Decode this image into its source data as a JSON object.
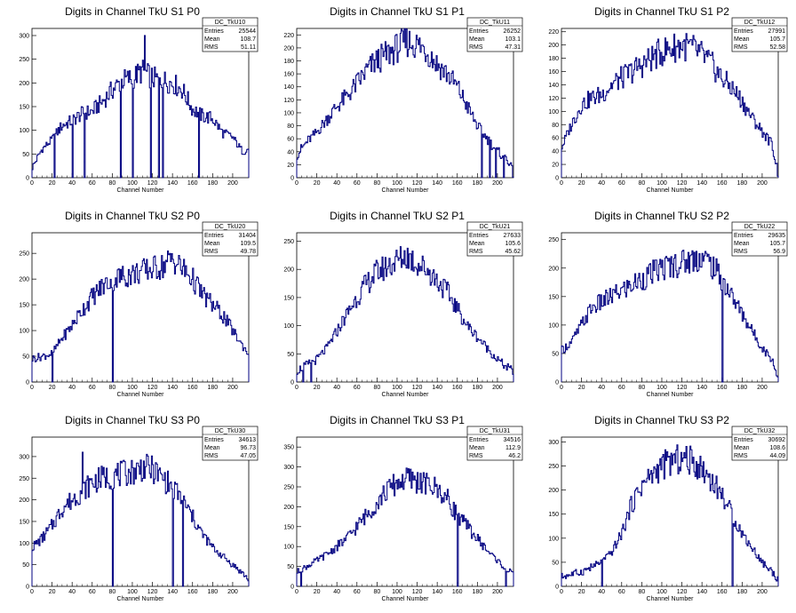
{
  "page": {
    "background": "#ffffff"
  },
  "style": {
    "line_color": "#000080",
    "axis_color": "#000000"
  },
  "chart_data": [
    {
      "type": "line",
      "id": "TkU10",
      "title": "Digits in Channel TkU S1 P0",
      "xlabel": "Channel Number",
      "ylabel": "",
      "xlim": [
        0,
        216
      ],
      "ylim": [
        0,
        315
      ],
      "xticks": [
        "0",
        "20",
        "40",
        "60",
        "80",
        "100",
        "120",
        "140",
        "160",
        "180",
        "200"
      ],
      "yticks": [
        "0",
        "50",
        "100",
        "150",
        "200",
        "250",
        "300"
      ],
      "stats": {
        "name": "DC_TkU10",
        "entries": "25544",
        "mean": "108.7",
        "rms": "51.11"
      },
      "x": [
        0,
        10,
        20,
        30,
        40,
        50,
        60,
        70,
        80,
        90,
        100,
        110,
        120,
        130,
        140,
        150,
        160,
        170,
        180,
        190,
        200,
        210,
        216
      ],
      "values": [
        20,
        60,
        80,
        110,
        120,
        135,
        140,
        160,
        185,
        205,
        210,
        225,
        210,
        205,
        200,
        185,
        145,
        130,
        125,
        95,
        85,
        55,
        60
      ],
      "spikes": [
        [
          22,
          0
        ],
        [
          40,
          0
        ],
        [
          52,
          0
        ],
        [
          88,
          0
        ],
        [
          100,
          0
        ],
        [
          112,
          300
        ],
        [
          118,
          0
        ],
        [
          126,
          0
        ],
        [
          130,
          0
        ],
        [
          166,
          0
        ]
      ]
    },
    {
      "type": "line",
      "id": "TkU11",
      "title": "Digits in Channel TkU S1 P1",
      "xlabel": "Channel Number",
      "ylabel": "",
      "xlim": [
        0,
        216
      ],
      "ylim": [
        0,
        230
      ],
      "xticks": [
        "0",
        "20",
        "40",
        "60",
        "80",
        "100",
        "120",
        "140",
        "160",
        "180",
        "200"
      ],
      "yticks": [
        "0",
        "20",
        "40",
        "60",
        "80",
        "100",
        "120",
        "140",
        "160",
        "180",
        "200",
        "220"
      ],
      "stats": {
        "name": "DC_TkU11",
        "entries": "26252",
        "mean": "103.1",
        "rms": "47.31"
      },
      "x": [
        0,
        10,
        20,
        30,
        40,
        50,
        60,
        70,
        80,
        90,
        100,
        110,
        120,
        130,
        140,
        150,
        160,
        170,
        180,
        190,
        200,
        210,
        216
      ],
      "values": [
        35,
        55,
        70,
        90,
        110,
        125,
        145,
        165,
        180,
        190,
        200,
        210,
        205,
        195,
        175,
        160,
        140,
        110,
        80,
        60,
        40,
        30,
        5
      ],
      "spikes": [
        [
          184,
          0
        ],
        [
          192,
          0
        ],
        [
          198,
          0
        ],
        [
          206,
          0
        ]
      ]
    },
    {
      "type": "line",
      "id": "TkU12",
      "title": "Digits in Channel TkU S1 P2",
      "xlabel": "Channel Number",
      "ylabel": "",
      "xlim": [
        0,
        216
      ],
      "ylim": [
        0,
        225
      ],
      "xticks": [
        "0",
        "20",
        "40",
        "60",
        "80",
        "100",
        "120",
        "140",
        "160",
        "180",
        "200"
      ],
      "yticks": [
        "0",
        "20",
        "40",
        "60",
        "80",
        "100",
        "120",
        "140",
        "160",
        "180",
        "200",
        "220"
      ],
      "stats": {
        "name": "DC_TkU12",
        "entries": "27991",
        "mean": "105.7",
        "rms": "52.58"
      },
      "x": [
        0,
        10,
        20,
        30,
        40,
        50,
        60,
        70,
        80,
        90,
        100,
        110,
        120,
        130,
        140,
        150,
        160,
        170,
        180,
        190,
        200,
        210,
        216
      ],
      "values": [
        45,
        80,
        110,
        120,
        125,
        140,
        150,
        160,
        170,
        180,
        190,
        195,
        200,
        195,
        185,
        170,
        150,
        135,
        115,
        90,
        70,
        50,
        5
      ],
      "spikes": []
    },
    {
      "type": "line",
      "id": "TkU20",
      "title": "Digits in Channel TkU S2 P0",
      "xlabel": "Channel Number",
      "ylabel": "",
      "xlim": [
        0,
        216
      ],
      "ylim": [
        0,
        290
      ],
      "xticks": [
        "0",
        "20",
        "40",
        "60",
        "80",
        "100",
        "120",
        "140",
        "160",
        "180",
        "200"
      ],
      "yticks": [
        "0",
        "50",
        "100",
        "150",
        "200",
        "250"
      ],
      "stats": {
        "name": "DC_TkU20",
        "entries": "31404",
        "mean": "109.5",
        "rms": "49.78"
      },
      "x": [
        0,
        10,
        20,
        30,
        40,
        50,
        60,
        70,
        80,
        90,
        100,
        110,
        120,
        130,
        140,
        150,
        160,
        170,
        180,
        190,
        200,
        210,
        216
      ],
      "values": [
        45,
        50,
        55,
        85,
        110,
        140,
        165,
        185,
        200,
        205,
        210,
        215,
        220,
        225,
        240,
        220,
        200,
        170,
        150,
        130,
        100,
        70,
        55
      ],
      "spikes": [
        [
          20,
          0
        ],
        [
          80,
          0
        ]
      ]
    },
    {
      "type": "line",
      "id": "TkU21",
      "title": "Digits in Channel TkU S2 P1",
      "xlabel": "Channel Number",
      "ylabel": "",
      "xlim": [
        0,
        216
      ],
      "ylim": [
        0,
        265
      ],
      "xticks": [
        "0",
        "20",
        "40",
        "60",
        "80",
        "100",
        "120",
        "140",
        "160",
        "180",
        "200"
      ],
      "yticks": [
        "0",
        "50",
        "100",
        "150",
        "200",
        "250"
      ],
      "stats": {
        "name": "DC_TkU21",
        "entries": "27633",
        "mean": "105.6",
        "rms": "45.62"
      },
      "x": [
        0,
        10,
        20,
        30,
        40,
        50,
        60,
        70,
        80,
        90,
        100,
        110,
        120,
        130,
        140,
        150,
        160,
        170,
        180,
        190,
        200,
        210,
        216
      ],
      "values": [
        20,
        30,
        40,
        60,
        90,
        120,
        150,
        175,
        195,
        205,
        215,
        225,
        210,
        200,
        180,
        160,
        130,
        100,
        80,
        60,
        40,
        25,
        20
      ],
      "spikes": [
        [
          6,
          0
        ],
        [
          14,
          0
        ]
      ]
    },
    {
      "type": "line",
      "id": "TkU22",
      "title": "Digits in Channel TkU S2 P2",
      "xlabel": "Channel Number",
      "ylabel": "",
      "xlim": [
        0,
        216
      ],
      "ylim": [
        0,
        262
      ],
      "xticks": [
        "0",
        "20",
        "40",
        "60",
        "80",
        "100",
        "120",
        "140",
        "160",
        "180",
        "200"
      ],
      "yticks": [
        "0",
        "50",
        "100",
        "150",
        "200",
        "250"
      ],
      "stats": {
        "name": "DC_TkU22",
        "entries": "29635",
        "mean": "105.7",
        "rms": "56.9"
      },
      "x": [
        0,
        10,
        20,
        30,
        40,
        50,
        60,
        70,
        80,
        90,
        100,
        110,
        120,
        130,
        140,
        150,
        160,
        170,
        180,
        190,
        200,
        210,
        216
      ],
      "values": [
        55,
        70,
        100,
        130,
        140,
        150,
        160,
        170,
        180,
        190,
        200,
        205,
        210,
        215,
        220,
        205,
        180,
        150,
        120,
        90,
        60,
        40,
        5
      ],
      "spikes": [
        [
          160,
          0
        ]
      ]
    },
    {
      "type": "line",
      "id": "TkU30",
      "title": "Digits in Channel TkU S3 P0",
      "xlabel": "Channel Number",
      "ylabel": "",
      "xlim": [
        0,
        216
      ],
      "ylim": [
        0,
        345
      ],
      "xticks": [
        "0",
        "20",
        "40",
        "60",
        "80",
        "100",
        "120",
        "140",
        "160",
        "180",
        "200"
      ],
      "yticks": [
        "0",
        "50",
        "100",
        "150",
        "200",
        "250",
        "300"
      ],
      "stats": {
        "name": "DC_TkU30",
        "entries": "34613",
        "mean": "96.73",
        "rms": "47.05"
      },
      "x": [
        0,
        10,
        20,
        30,
        40,
        50,
        60,
        70,
        80,
        90,
        100,
        110,
        120,
        130,
        140,
        150,
        160,
        170,
        180,
        190,
        200,
        210,
        216
      ],
      "values": [
        90,
        110,
        140,
        180,
        200,
        220,
        240,
        250,
        255,
        260,
        265,
        275,
        270,
        250,
        230,
        200,
        160,
        120,
        90,
        70,
        50,
        30,
        15
      ],
      "spikes": [
        [
          50,
          310
        ],
        [
          80,
          0
        ],
        [
          140,
          0
        ],
        [
          150,
          0
        ]
      ]
    },
    {
      "type": "line",
      "id": "TkU31",
      "title": "Digits in Channel TkU S3 P1",
      "xlabel": "Channel Number",
      "ylabel": "",
      "xlim": [
        0,
        216
      ],
      "ylim": [
        0,
        375
      ],
      "xticks": [
        "0",
        "20",
        "40",
        "60",
        "80",
        "100",
        "120",
        "140",
        "160",
        "180",
        "200"
      ],
      "yticks": [
        "0",
        "50",
        "100",
        "150",
        "200",
        "250",
        "300",
        "350"
      ],
      "stats": {
        "name": "DC_TkU31",
        "entries": "34516",
        "mean": "112.9",
        "rms": "46.2"
      },
      "x": [
        0,
        10,
        20,
        30,
        40,
        50,
        60,
        70,
        80,
        90,
        100,
        110,
        120,
        130,
        140,
        150,
        160,
        170,
        180,
        190,
        200,
        210,
        216
      ],
      "values": [
        35,
        50,
        65,
        80,
        100,
        120,
        150,
        180,
        210,
        240,
        260,
        270,
        265,
        255,
        245,
        220,
        180,
        150,
        120,
        90,
        65,
        40,
        30
      ],
      "spikes": [
        [
          4,
          0
        ],
        [
          160,
          0
        ],
        [
          208,
          0
        ]
      ]
    },
    {
      "type": "line",
      "id": "TkU32",
      "title": "Digits in Channel TkU S3 P2",
      "xlabel": "Channel Number",
      "ylabel": "",
      "xlim": [
        0,
        216
      ],
      "ylim": [
        0,
        310
      ],
      "xticks": [
        "0",
        "20",
        "40",
        "60",
        "80",
        "100",
        "120",
        "140",
        "160",
        "180",
        "200"
      ],
      "yticks": [
        "0",
        "50",
        "100",
        "150",
        "200",
        "250",
        "300"
      ],
      "stats": {
        "name": "DC_TkU32",
        "entries": "30692",
        "mean": "108.6",
        "rms": "44.09"
      },
      "x": [
        0,
        10,
        20,
        30,
        40,
        50,
        60,
        70,
        80,
        90,
        100,
        110,
        120,
        130,
        140,
        150,
        160,
        170,
        180,
        190,
        200,
        210,
        216
      ],
      "values": [
        20,
        25,
        30,
        40,
        50,
        70,
        110,
        170,
        210,
        230,
        250,
        260,
        265,
        260,
        245,
        220,
        190,
        150,
        110,
        80,
        50,
        30,
        15
      ],
      "spikes": [
        [
          40,
          0
        ],
        [
          170,
          0
        ]
      ]
    }
  ]
}
